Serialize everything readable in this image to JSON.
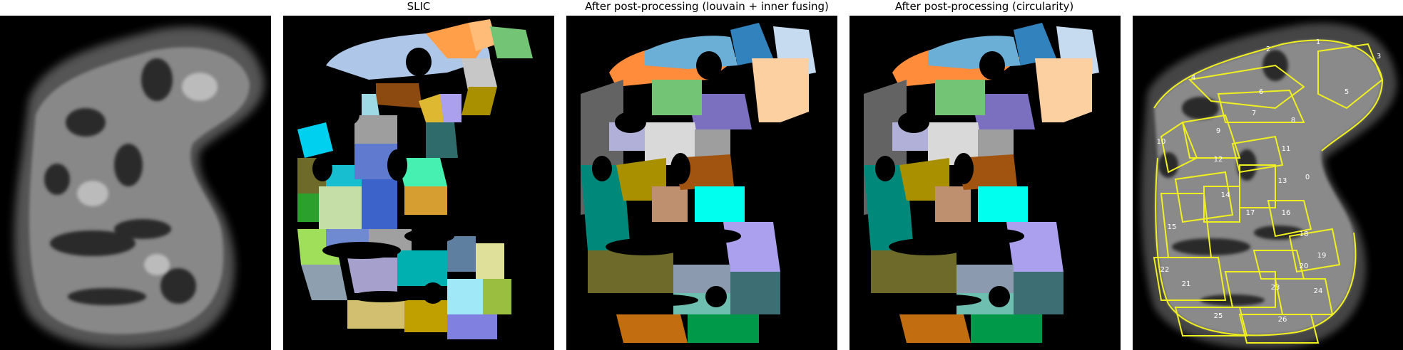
{
  "titles": {
    "p1": "",
    "p2": "SLIC",
    "p3": "After post-processing (louvain + inner fusing)",
    "p4": "After post-processing (circularity)",
    "p5": ""
  },
  "segment_labels": [
    "1",
    "2",
    "3",
    "4",
    "5",
    "6",
    "7",
    "8",
    "9",
    "10",
    "11",
    "12",
    "13",
    "0",
    "14",
    "15",
    "16",
    "17",
    "18",
    "19",
    "20",
    "21",
    "22",
    "23",
    "24",
    "25",
    "26"
  ],
  "colors": {
    "background": "#000000",
    "outline": "#f0f020",
    "label": "#ffffff"
  }
}
